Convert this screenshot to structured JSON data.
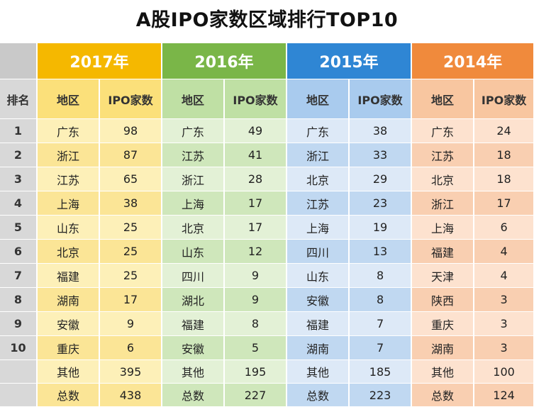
{
  "title": "A股IPO家数区域排行TOP10",
  "chart_data": {
    "type": "table",
    "title": "A股IPO家数区域排行TOP10",
    "rank_header": "排名",
    "region_header": "地区",
    "count_header": "IPO家数",
    "years": [
      {
        "year": "2017年",
        "rows": [
          {
            "rank": "1",
            "region": "广东",
            "count": "98"
          },
          {
            "rank": "2",
            "region": "浙江",
            "count": "87"
          },
          {
            "rank": "3",
            "region": "江苏",
            "count": "65"
          },
          {
            "rank": "4",
            "region": "上海",
            "count": "38"
          },
          {
            "rank": "5",
            "region": "山东",
            "count": "25"
          },
          {
            "rank": "6",
            "region": "北京",
            "count": "25"
          },
          {
            "rank": "7",
            "region": "福建",
            "count": "25"
          },
          {
            "rank": "8",
            "region": "湖南",
            "count": "17"
          },
          {
            "rank": "9",
            "region": "安徽",
            "count": "9"
          },
          {
            "rank": "10",
            "region": "重庆",
            "count": "6"
          }
        ],
        "other": {
          "label": "其他",
          "count": "395"
        },
        "total": {
          "label": "总数",
          "count": "438"
        }
      },
      {
        "year": "2016年",
        "rows": [
          {
            "rank": "1",
            "region": "广东",
            "count": "49"
          },
          {
            "rank": "2",
            "region": "江苏",
            "count": "41"
          },
          {
            "rank": "3",
            "region": "浙江",
            "count": "28"
          },
          {
            "rank": "4",
            "region": "上海",
            "count": "17"
          },
          {
            "rank": "5",
            "region": "北京",
            "count": "17"
          },
          {
            "rank": "6",
            "region": "山东",
            "count": "12"
          },
          {
            "rank": "7",
            "region": "四川",
            "count": "9"
          },
          {
            "rank": "8",
            "region": "湖北",
            "count": "9"
          },
          {
            "rank": "9",
            "region": "福建",
            "count": "8"
          },
          {
            "rank": "10",
            "region": "安徽",
            "count": "5"
          }
        ],
        "other": {
          "label": "其他",
          "count": "195"
        },
        "total": {
          "label": "总数",
          "count": "227"
        }
      },
      {
        "year": "2015年",
        "rows": [
          {
            "rank": "1",
            "region": "广东",
            "count": "38"
          },
          {
            "rank": "2",
            "region": "浙江",
            "count": "33"
          },
          {
            "rank": "3",
            "region": "北京",
            "count": "29"
          },
          {
            "rank": "4",
            "region": "江苏",
            "count": "23"
          },
          {
            "rank": "5",
            "region": "上海",
            "count": "19"
          },
          {
            "rank": "6",
            "region": "四川",
            "count": "13"
          },
          {
            "rank": "7",
            "region": "山东",
            "count": "8"
          },
          {
            "rank": "8",
            "region": "安徽",
            "count": "8"
          },
          {
            "rank": "9",
            "region": "福建",
            "count": "7"
          },
          {
            "rank": "10",
            "region": "湖南",
            "count": "7"
          }
        ],
        "other": {
          "label": "其他",
          "count": "185"
        },
        "total": {
          "label": "总数",
          "count": "223"
        }
      },
      {
        "year": "2014年",
        "rows": [
          {
            "rank": "1",
            "region": "广东",
            "count": "24"
          },
          {
            "rank": "2",
            "region": "江苏",
            "count": "18"
          },
          {
            "rank": "3",
            "region": "北京",
            "count": "18"
          },
          {
            "rank": "4",
            "region": "浙江",
            "count": "17"
          },
          {
            "rank": "5",
            "region": "上海",
            "count": "6"
          },
          {
            "rank": "6",
            "region": "福建",
            "count": "4"
          },
          {
            "rank": "7",
            "region": "天津",
            "count": "4"
          },
          {
            "rank": "8",
            "region": "陕西",
            "count": "3"
          },
          {
            "rank": "9",
            "region": "重庆",
            "count": "3"
          },
          {
            "rank": "10",
            "region": "湖南",
            "count": "3"
          }
        ],
        "other": {
          "label": "其他",
          "count": "100"
        },
        "total": {
          "label": "总数",
          "count": "124"
        }
      }
    ]
  },
  "colors": {
    "2017": "#f5b800",
    "2016": "#7ab648",
    "2015": "#2f86d4",
    "2014": "#f08a3c"
  }
}
